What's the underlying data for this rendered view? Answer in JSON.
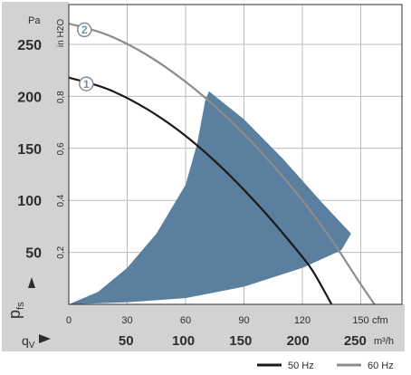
{
  "chart_data": {
    "type": "line",
    "units": {
      "pressure_left": "Pa",
      "pressure_right": "in H2O",
      "flow_top": "cfm",
      "flow_bottom": "m³/h"
    },
    "axis_symbols": {
      "y": "p",
      "y_sub": "fs",
      "x": "q",
      "x_sub": "V"
    },
    "y_axis_pa": {
      "range": [
        0,
        300
      ],
      "ticks": [
        50,
        100,
        150,
        200,
        250
      ]
    },
    "y_axis_inh2o": {
      "ticks": [
        "0,2",
        "0,4",
        "0,6",
        "0,8"
      ],
      "values": [
        0.2,
        0.4,
        0.6,
        0.8
      ]
    },
    "x_axis_cfm": {
      "range": [
        0,
        165
      ],
      "ticks": [
        0,
        30,
        60,
        90,
        120,
        150
      ]
    },
    "x_axis_m3h": {
      "ticks": [
        50,
        100,
        150,
        200,
        250
      ]
    },
    "grid": true,
    "series": [
      {
        "marker": "1",
        "legend": "50 Hz",
        "color": "#1a1a1a",
        "points_cfm_pa": [
          [
            0,
            218
          ],
          [
            20,
            207
          ],
          [
            40,
            188
          ],
          [
            60,
            162
          ],
          [
            80,
            129
          ],
          [
            100,
            90
          ],
          [
            115,
            57
          ],
          [
            125,
            33
          ],
          [
            135,
            0
          ]
        ]
      },
      {
        "marker": "2",
        "legend": "60 Hz",
        "color": "#8c8c8c",
        "points_cfm_pa": [
          [
            0,
            270
          ],
          [
            20,
            259
          ],
          [
            40,
            240
          ],
          [
            60,
            214
          ],
          [
            80,
            182
          ],
          [
            100,
            144
          ],
          [
            120,
            100
          ],
          [
            135,
            62
          ],
          [
            148,
            25
          ],
          [
            157,
            0
          ]
        ]
      }
    ],
    "operating_region": {
      "color": "#5a7f9f",
      "points_cfm_pa": [
        [
          0,
          0
        ],
        [
          15,
          12
        ],
        [
          30,
          35
        ],
        [
          45,
          68
        ],
        [
          60,
          115
        ],
        [
          66,
          155
        ],
        [
          70,
          195
        ],
        [
          72,
          205
        ],
        [
          90,
          178
        ],
        [
          110,
          140
        ],
        [
          130,
          98
        ],
        [
          145,
          68
        ],
        [
          140,
          52
        ],
        [
          120,
          35
        ],
        [
          90,
          17
        ],
        [
          60,
          6
        ],
        [
          30,
          2
        ],
        [
          0,
          0
        ]
      ]
    }
  },
  "colors": {
    "axis_panel": "#d2d2d2",
    "grid": "#bbbbbb",
    "marker_fill": "#ffffff",
    "marker_stroke": "#8c8c8c",
    "marker_text": "#6f8fab"
  }
}
